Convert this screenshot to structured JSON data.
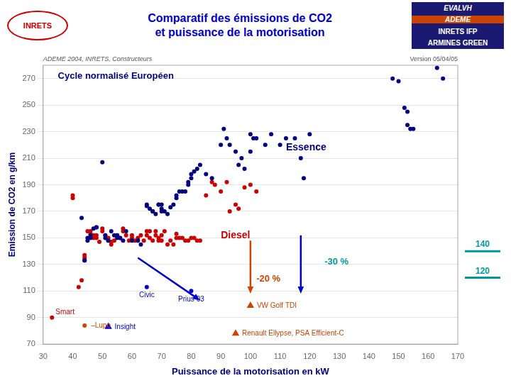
{
  "chart_data": {
    "type": "scatter",
    "title": "Comparatif des émissions de CO2",
    "subtitle": "et puissance de la motorisation",
    "logos": [
      "INRETS",
      "EVALVH",
      "ADEME",
      "INRETS IFP",
      "ARMINES GREEN"
    ],
    "notes": [
      "ADEME 2004, INRETS, Constructeurs",
      "Version 05/04/05"
    ],
    "xlabel": "Puissance de la motorisation en kW",
    "ylabel": "Emission de CO2 en g/km",
    "xlim": [
      30,
      170
    ],
    "ylim": [
      70,
      280
    ],
    "xticks": [
      30,
      40,
      50,
      60,
      70,
      80,
      90,
      100,
      110,
      120,
      130,
      140,
      150,
      160,
      170
    ],
    "yticks": [
      70,
      90,
      110,
      130,
      150,
      170,
      190,
      210,
      230,
      250,
      270
    ],
    "grid": "y",
    "series": [
      {
        "name": "Essence",
        "color": "#000080",
        "marker": "circle",
        "label_at": [
          112,
          218
        ],
        "points": [
          [
            43,
            165
          ],
          [
            44,
            133
          ],
          [
            44,
            133
          ],
          [
            45,
            148
          ],
          [
            45,
            150
          ],
          [
            46,
            152
          ],
          [
            46,
            150
          ],
          [
            47,
            157
          ],
          [
            48,
            158
          ],
          [
            48,
            158
          ],
          [
            50,
            207
          ],
          [
            51,
            150
          ],
          [
            51,
            152
          ],
          [
            52,
            148
          ],
          [
            53,
            155
          ],
          [
            54,
            152
          ],
          [
            55,
            150
          ],
          [
            55,
            152
          ],
          [
            56,
            150
          ],
          [
            57,
            148
          ],
          [
            58,
            155
          ],
          [
            60,
            148
          ],
          [
            62,
            148
          ],
          [
            63,
            145
          ],
          [
            65,
            174
          ],
          [
            65,
            175
          ],
          [
            66,
            172
          ],
          [
            67,
            170
          ],
          [
            67,
            170
          ],
          [
            68,
            168
          ],
          [
            69,
            175
          ],
          [
            69,
            175
          ],
          [
            70,
            170
          ],
          [
            70,
            172
          ],
          [
            70,
            175
          ],
          [
            71,
            170
          ],
          [
            72,
            168
          ],
          [
            73,
            173
          ],
          [
            74,
            175
          ],
          [
            75,
            180
          ],
          [
            75,
            182
          ],
          [
            76,
            185
          ],
          [
            77,
            185
          ],
          [
            78,
            185
          ],
          [
            79,
            190
          ],
          [
            79,
            192
          ],
          [
            80,
            195
          ],
          [
            80,
            198
          ],
          [
            81,
            200
          ],
          [
            82,
            202
          ],
          [
            83,
            205
          ],
          [
            85,
            198
          ],
          [
            87,
            195
          ],
          [
            90,
            220
          ],
          [
            91,
            232
          ],
          [
            92,
            225
          ],
          [
            93,
            220
          ],
          [
            95,
            215
          ],
          [
            96,
            205
          ],
          [
            97,
            210
          ],
          [
            98,
            202
          ],
          [
            100,
            215
          ],
          [
            100,
            228
          ],
          [
            101,
            225
          ],
          [
            102,
            225
          ],
          [
            105,
            220
          ],
          [
            107,
            228
          ],
          [
            110,
            220
          ],
          [
            112,
            225
          ],
          [
            115,
            225
          ],
          [
            117,
            210
          ],
          [
            118,
            195
          ],
          [
            120,
            228
          ],
          [
            148,
            270
          ],
          [
            150,
            268
          ],
          [
            152,
            248
          ],
          [
            153,
            245
          ],
          [
            153,
            235
          ],
          [
            154,
            232
          ],
          [
            155,
            232
          ],
          [
            163,
            278
          ],
          [
            165,
            270
          ]
        ]
      },
      {
        "name": "Diesel",
        "color": "#CC0000",
        "marker": "circle",
        "label_at": [
          90,
          152
        ],
        "points": [
          [
            40,
            180
          ],
          [
            40,
            182
          ],
          [
            42,
            113
          ],
          [
            43,
            118
          ],
          [
            44,
            135
          ],
          [
            44,
            137
          ],
          [
            45,
            155
          ],
          [
            46,
            155
          ],
          [
            46,
            153
          ],
          [
            47,
            150
          ],
          [
            47,
            152
          ],
          [
            48,
            150
          ],
          [
            48,
            152
          ],
          [
            49,
            147
          ],
          [
            50,
            155
          ],
          [
            50,
            157
          ],
          [
            51,
            152
          ],
          [
            52,
            148
          ],
          [
            52,
            150
          ],
          [
            53,
            145
          ],
          [
            53,
            147
          ],
          [
            54,
            148
          ],
          [
            55,
            152
          ],
          [
            56,
            150
          ],
          [
            57,
            155
          ],
          [
            57,
            157
          ],
          [
            58,
            152
          ],
          [
            59,
            148
          ],
          [
            60,
            150
          ],
          [
            60,
            152
          ],
          [
            61,
            148
          ],
          [
            62,
            150
          ],
          [
            63,
            152
          ],
          [
            64,
            148
          ],
          [
            65,
            152
          ],
          [
            65,
            155
          ],
          [
            66,
            150
          ],
          [
            66,
            155
          ],
          [
            67,
            148
          ],
          [
            68,
            152
          ],
          [
            68,
            155
          ],
          [
            69,
            148
          ],
          [
            69,
            150
          ],
          [
            70,
            148
          ],
          [
            70,
            152
          ],
          [
            71,
            155
          ],
          [
            72,
            145
          ],
          [
            73,
            148
          ],
          [
            74,
            145
          ],
          [
            75,
            150
          ],
          [
            75,
            153
          ],
          [
            76,
            150
          ],
          [
            77,
            150
          ],
          [
            78,
            148
          ],
          [
            79,
            148
          ],
          [
            80,
            150
          ],
          [
            81,
            150
          ],
          [
            82,
            148
          ],
          [
            83,
            148
          ],
          [
            85,
            182
          ],
          [
            87,
            192
          ],
          [
            88,
            190
          ],
          [
            90,
            185
          ],
          [
            92,
            192
          ],
          [
            93,
            170
          ],
          [
            95,
            175
          ],
          [
            96,
            172
          ],
          [
            98,
            188
          ],
          [
            100,
            190
          ],
          [
            102,
            185
          ]
        ]
      }
    ],
    "marked_points": [
      {
        "name": "Insight",
        "x": 52,
        "y": 83,
        "marker": "triangle",
        "color": "#0000CC",
        "label_side": "right"
      },
      {
        "name": "Smart",
        "x": 33,
        "y": 90,
        "marker": "circle",
        "color": "#CC0000",
        "label_side": "above-right"
      },
      {
        "name": "–Lupo",
        "x": 44,
        "y": 84,
        "marker": "circle",
        "color": "#CC4400",
        "label_side": "right"
      },
      {
        "name": "Civic",
        "x": 65,
        "y": 113,
        "marker": "circle",
        "color": "#0000CC",
        "label_side": "below"
      },
      {
        "name": "Prius 03",
        "x": 80,
        "y": 110,
        "marker": "circle",
        "color": "#0000CC",
        "label_side": "below"
      },
      {
        "name": "VW Golf TDI",
        "x": 100,
        "y": 99,
        "marker": "triangle",
        "color": "#CC4400",
        "label_side": "right"
      },
      {
        "name": "Renault Ellypse, PSA Efficient-C",
        "x": 95,
        "y": 78,
        "marker": "triangle",
        "color": "#CC4400",
        "label_side": "right"
      }
    ],
    "arrows": [
      {
        "from": [
          62,
          135
        ],
        "to": [
          83,
          103
        ],
        "color": "#0000CC"
      },
      {
        "from": [
          117,
          152
        ],
        "to": [
          117,
          108
        ],
        "color": "#0000CC"
      },
      {
        "from": [
          100,
          148
        ],
        "to": [
          100,
          108
        ],
        "color": "#CC4400"
      }
    ],
    "annotations": [
      {
        "text": "-30 %",
        "x": 125,
        "y": 132,
        "color": "#009999"
      },
      {
        "text": "-20 %",
        "x": 102,
        "y": 119,
        "color": "#CC4400"
      },
      {
        "text": "Cycle normalisé Européen",
        "x": 35,
        "y": 272,
        "color": "#000080"
      }
    ],
    "reference_lines": [
      {
        "y": 140,
        "label": "140",
        "color": "#009999"
      },
      {
        "y": 120,
        "label": "120",
        "color": "#009999"
      }
    ]
  }
}
